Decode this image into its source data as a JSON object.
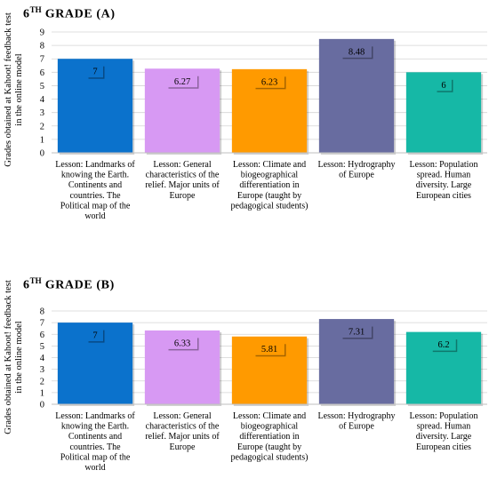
{
  "chart_data": [
    {
      "type": "bar",
      "title_main": "6",
      "title_sup": "TH",
      "title_rest": " GRADE (A)",
      "ylabel_lines": [
        "Grades obtained at Kahoot! feedback test",
        "in the online model"
      ],
      "ylim": [
        0,
        9
      ],
      "yticks": [
        "0",
        "1",
        "2",
        "3",
        "4",
        "5",
        "6",
        "7",
        "8",
        "9"
      ],
      "grid": true,
      "categories": [
        [
          "Lesson: Landmarks of",
          "knowing the Earth.",
          "Continents and",
          "countries. The",
          "Political map of the",
          "world"
        ],
        [
          "Lesson: General",
          "characteristics of the",
          "relief. Major units of",
          "Europe"
        ],
        [
          "Lesson: Climate and",
          "biogeographical",
          "differentiation in",
          "Europe (taught by",
          "pedagogical students)"
        ],
        [
          "Lesson: Hydrography",
          "of Europe"
        ],
        [
          "Lesson: Population",
          "spread. Human",
          "diversity. Large",
          "European cities"
        ]
      ],
      "values": [
        7,
        6.27,
        6.23,
        8.48,
        6
      ],
      "value_labels": [
        "7",
        "6.27",
        "6.23",
        "8.48",
        "6"
      ],
      "colors": [
        "#0b72cc",
        "#d799f3",
        "#ff9a00",
        "#686ca0",
        "#16b8a6"
      ]
    },
    {
      "type": "bar",
      "title_main": "6",
      "title_sup": "TH",
      "title_rest": " GRADE (B)",
      "ylabel_lines": [
        "Grades obtained at Kahoot! feedback test",
        "in the online model"
      ],
      "ylim": [
        0,
        8
      ],
      "yticks": [
        "0",
        "1",
        "2",
        "3",
        "4",
        "5",
        "6",
        "7",
        "8"
      ],
      "grid": true,
      "categories": [
        [
          "Lesson: Landmarks of",
          "knowing the Earth.",
          "Continents and",
          "countries. The",
          "Political map of the",
          "world"
        ],
        [
          "Lesson: General",
          "characteristics of the",
          "relief. Major units of",
          "Europe"
        ],
        [
          "Lesson: Climate and",
          "biogeographical",
          "differentiation in",
          "Europe (taught by",
          "pedagogical students)"
        ],
        [
          "Lesson: Hydrography",
          "of Europe"
        ],
        [
          "Lesson: Population",
          "spread. Human",
          "diversity. Large",
          "European cities"
        ]
      ],
      "values": [
        7,
        6.33,
        5.81,
        7.31,
        6.2
      ],
      "value_labels": [
        "7",
        "6.33",
        "5.81",
        "7.31",
        "6.2"
      ],
      "colors": [
        "#0b72cc",
        "#d799f3",
        "#ff9a00",
        "#686ca0",
        "#16b8a6"
      ]
    }
  ]
}
